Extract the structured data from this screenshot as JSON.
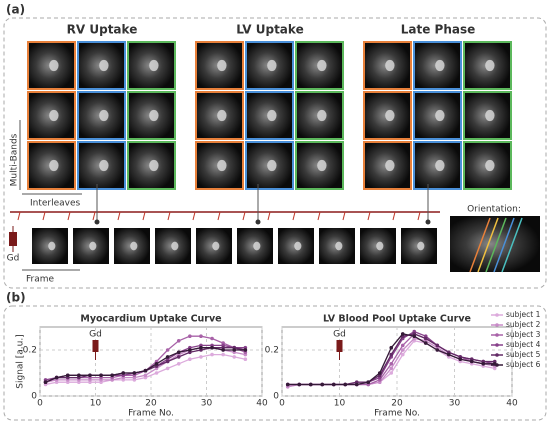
{
  "panel_a": {
    "label": "(a)",
    "columns": [
      "RV Uptake",
      "LV Uptake",
      "Late Phase"
    ],
    "multi_bands": "Multi-Bands",
    "interleaves": "Interleaves",
    "gd": "Gd",
    "frame": "Frame",
    "orientation": "Orientation:"
  },
  "panel_b": {
    "label": "(b)"
  },
  "chart_data": [
    {
      "type": "line",
      "title": "Myocardium Uptake Curve",
      "ylabel": "Signal [a.u.]",
      "xlabel": "Frame No.",
      "annotation": {
        "text": "Gd",
        "x": 10
      },
      "xlim": [
        0,
        40
      ],
      "xticks": [
        0,
        10,
        20,
        30,
        40
      ],
      "ylim": [
        0,
        0.3
      ],
      "yticks": [
        0,
        0.2
      ],
      "grid": true,
      "x": [
        1,
        3,
        5,
        7,
        9,
        11,
        13,
        15,
        17,
        19,
        21,
        23,
        25,
        27,
        29,
        31,
        33,
        35,
        37
      ],
      "series": [
        {
          "color": "#dcaadc",
          "values": [
            0.05,
            0.06,
            0.06,
            0.06,
            0.06,
            0.06,
            0.07,
            0.07,
            0.07,
            0.08,
            0.1,
            0.12,
            0.14,
            0.16,
            0.17,
            0.18,
            0.18,
            0.17,
            0.16
          ]
        },
        {
          "color": "#c88cc8",
          "values": [
            0.06,
            0.07,
            0.07,
            0.07,
            0.07,
            0.07,
            0.07,
            0.08,
            0.08,
            0.09,
            0.12,
            0.15,
            0.18,
            0.2,
            0.21,
            0.21,
            0.2,
            0.19,
            0.18
          ]
        },
        {
          "color": "#a862a8",
          "values": [
            0.06,
            0.08,
            0.08,
            0.08,
            0.08,
            0.08,
            0.08,
            0.09,
            0.09,
            0.11,
            0.15,
            0.2,
            0.24,
            0.26,
            0.26,
            0.25,
            0.23,
            0.21,
            0.19
          ]
        },
        {
          "color": "#87418a",
          "values": [
            0.07,
            0.08,
            0.09,
            0.09,
            0.09,
            0.09,
            0.09,
            0.09,
            0.1,
            0.11,
            0.13,
            0.16,
            0.19,
            0.21,
            0.22,
            0.22,
            0.22,
            0.21,
            0.21
          ]
        },
        {
          "color": "#632a66",
          "values": [
            0.06,
            0.08,
            0.08,
            0.08,
            0.09,
            0.09,
            0.09,
            0.1,
            0.1,
            0.11,
            0.13,
            0.15,
            0.17,
            0.19,
            0.2,
            0.21,
            0.21,
            0.21,
            0.2
          ]
        },
        {
          "color": "#351a38",
          "values": [
            0.06,
            0.08,
            0.09,
            0.09,
            0.09,
            0.09,
            0.09,
            0.1,
            0.1,
            0.11,
            0.14,
            0.17,
            0.19,
            0.2,
            0.21,
            0.21,
            0.2,
            0.2,
            0.2
          ]
        }
      ]
    },
    {
      "type": "line",
      "title": "LV Blood Pool Uptake Curve",
      "xlabel": "Frame No.",
      "annotation": {
        "text": "Gd",
        "x": 10
      },
      "xlim": [
        0,
        40
      ],
      "xticks": [
        0,
        10,
        20,
        30,
        40
      ],
      "ylim": [
        0,
        0.3
      ],
      "yticks": [
        0,
        0.2
      ],
      "grid": true,
      "legend": "upper right",
      "x": [
        1,
        3,
        5,
        7,
        9,
        11,
        13,
        15,
        17,
        19,
        21,
        23,
        25,
        27,
        29,
        31,
        33,
        35,
        37
      ],
      "series": [
        {
          "name": "subject 1",
          "color": "#dcaadc",
          "values": [
            0.04,
            0.05,
            0.05,
            0.05,
            0.05,
            0.05,
            0.05,
            0.05,
            0.06,
            0.1,
            0.18,
            0.24,
            0.23,
            0.2,
            0.17,
            0.15,
            0.14,
            0.13,
            0.12
          ]
        },
        {
          "name": "subject 2",
          "color": "#c88cc8",
          "values": [
            0.04,
            0.05,
            0.05,
            0.05,
            0.05,
            0.05,
            0.05,
            0.05,
            0.06,
            0.12,
            0.2,
            0.25,
            0.24,
            0.21,
            0.18,
            0.16,
            0.15,
            0.14,
            0.13
          ]
        },
        {
          "name": "subject 3",
          "color": "#a862a8",
          "values": [
            0.05,
            0.05,
            0.05,
            0.05,
            0.05,
            0.05,
            0.05,
            0.05,
            0.07,
            0.14,
            0.22,
            0.27,
            0.25,
            0.22,
            0.19,
            0.17,
            0.15,
            0.14,
            0.14
          ]
        },
        {
          "name": "subject 4",
          "color": "#87418a",
          "values": [
            0.05,
            0.05,
            0.05,
            0.05,
            0.05,
            0.05,
            0.05,
            0.06,
            0.08,
            0.17,
            0.25,
            0.28,
            0.26,
            0.22,
            0.19,
            0.17,
            0.16,
            0.15,
            0.14
          ]
        },
        {
          "name": "subject 5",
          "color": "#632a66",
          "values": [
            0.05,
            0.05,
            0.05,
            0.05,
            0.05,
            0.05,
            0.06,
            0.06,
            0.09,
            0.18,
            0.26,
            0.27,
            0.25,
            0.22,
            0.19,
            0.17,
            0.16,
            0.15,
            0.15
          ]
        },
        {
          "name": "subject 6",
          "color": "#351a38",
          "values": [
            0.05,
            0.05,
            0.05,
            0.05,
            0.05,
            0.05,
            0.05,
            0.06,
            0.1,
            0.21,
            0.27,
            0.26,
            0.23,
            0.2,
            0.18,
            0.16,
            0.15,
            0.14,
            0.14
          ]
        }
      ]
    }
  ]
}
